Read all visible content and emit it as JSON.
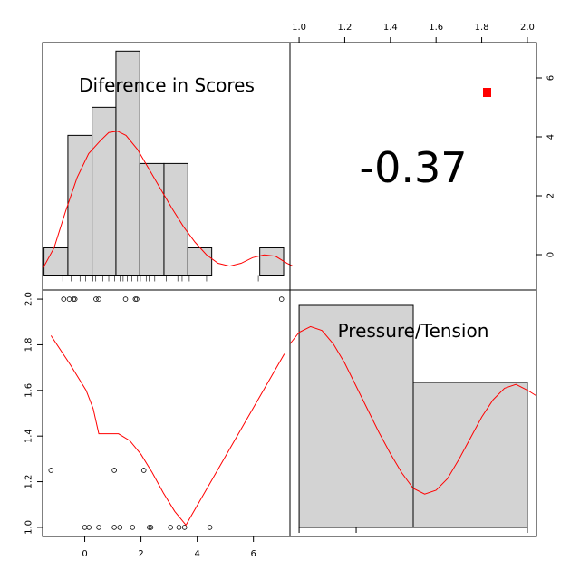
{
  "chart_data": {
    "type": "scatterplot-matrix",
    "variables": [
      "Diference in Scores",
      "Pressure/Tension"
    ],
    "correlation": {
      "label": "-0.37",
      "significance_marker_color": "#ff0000"
    },
    "diag_diff": {
      "title": "Diference in Scores",
      "type": "histogram",
      "bins": [
        {
          "x0": -1.25,
          "x1": -0.42,
          "count": 1
        },
        {
          "x0": -0.42,
          "x1": 0.42,
          "count": 5
        },
        {
          "x0": 0.42,
          "x1": 1.25,
          "count": 6
        },
        {
          "x0": 1.25,
          "x1": 2.08,
          "count": 8
        },
        {
          "x0": 2.08,
          "x1": 2.92,
          "count": 4
        },
        {
          "x0": 2.92,
          "x1": 3.75,
          "count": 4
        },
        {
          "x0": 3.75,
          "x1": 4.58,
          "count": 1
        },
        {
          "x0": 4.58,
          "x1": 5.42,
          "count": 0
        },
        {
          "x0": 5.42,
          "x1": 6.25,
          "count": 0
        },
        {
          "x0": 6.25,
          "x1": 7.08,
          "count": 1
        }
      ],
      "density_curve": [
        [
          -1.3,
          0.25
        ],
        [
          -0.9,
          1.0
        ],
        [
          -0.5,
          2.3
        ],
        [
          -0.1,
          3.5
        ],
        [
          0.3,
          4.35
        ],
        [
          0.7,
          4.8
        ],
        [
          1.0,
          5.1
        ],
        [
          1.3,
          5.15
        ],
        [
          1.6,
          5.0
        ],
        [
          2.0,
          4.5
        ],
        [
          2.4,
          3.8
        ],
        [
          2.8,
          3.1
        ],
        [
          3.2,
          2.4
        ],
        [
          3.6,
          1.75
        ],
        [
          4.0,
          1.2
        ],
        [
          4.4,
          0.75
        ],
        [
          4.8,
          0.45
        ],
        [
          5.2,
          0.35
        ],
        [
          5.6,
          0.45
        ],
        [
          6.0,
          0.65
        ],
        [
          6.4,
          0.75
        ],
        [
          6.8,
          0.7
        ],
        [
          7.2,
          0.45
        ],
        [
          7.4,
          0.35
        ]
      ],
      "rug": [
        -0.6,
        -0.3,
        0.0,
        0.2,
        0.45,
        0.55,
        0.8,
        1.0,
        1.2,
        1.4,
        1.5,
        1.65,
        1.8,
        2.0,
        2.1,
        2.3,
        2.4,
        2.6,
        3.0,
        3.4,
        3.55,
        3.8,
        4.4,
        6.2
      ],
      "xlim": [
        -1.3,
        7.3
      ],
      "ylim": [
        -0.5,
        8.3
      ]
    },
    "diag_pressure": {
      "title": "Pressure/Tension",
      "type": "histogram",
      "bins": [
        {
          "x0": 1.0,
          "x1": 1.5,
          "count": 12
        },
        {
          "x0": 1.5,
          "x1": 2.0,
          "count": 8
        }
      ],
      "density_curve": [
        [
          0.96,
          10.0
        ],
        [
          1.0,
          10.6
        ],
        [
          1.05,
          10.9
        ],
        [
          1.1,
          10.7
        ],
        [
          1.15,
          10.0
        ],
        [
          1.2,
          9.0
        ],
        [
          1.25,
          7.8
        ],
        [
          1.3,
          6.6
        ],
        [
          1.35,
          5.4
        ],
        [
          1.4,
          4.3
        ],
        [
          1.45,
          3.3
        ],
        [
          1.5,
          2.5
        ],
        [
          1.55,
          2.2
        ],
        [
          1.6,
          2.4
        ],
        [
          1.65,
          3.0
        ],
        [
          1.7,
          4.0
        ],
        [
          1.75,
          5.1
        ],
        [
          1.8,
          6.2
        ],
        [
          1.85,
          7.1
        ],
        [
          1.9,
          7.7
        ],
        [
          1.95,
          7.9
        ],
        [
          2.0,
          7.6
        ],
        [
          2.04,
          7.3
        ]
      ],
      "rug": [
        1.0,
        1.25,
        2.0
      ],
      "xlim": [
        0.96,
        2.04
      ],
      "ylim": [
        0,
        12.8
      ]
    },
    "scatter": {
      "x_variable": "Diference in Scores",
      "y_variable": "Pressure/Tension",
      "points": [
        [
          -0.75,
          2.0
        ],
        [
          -0.55,
          2.0
        ],
        [
          -0.4,
          2.0
        ],
        [
          -0.35,
          2.0
        ],
        [
          0.4,
          2.0
        ],
        [
          0.5,
          2.0
        ],
        [
          1.45,
          2.0
        ],
        [
          1.8,
          2.0
        ],
        [
          1.85,
          2.0
        ],
        [
          7.0,
          2.0
        ],
        [
          -1.2,
          1.25
        ],
        [
          1.05,
          1.25
        ],
        [
          2.1,
          1.25
        ],
        [
          0.0,
          1.0
        ],
        [
          0.15,
          1.0
        ],
        [
          0.5,
          1.0
        ],
        [
          1.05,
          1.0
        ],
        [
          1.25,
          1.0
        ],
        [
          1.7,
          1.0
        ],
        [
          2.3,
          1.0
        ],
        [
          2.35,
          1.0
        ],
        [
          3.05,
          1.0
        ],
        [
          3.35,
          1.0
        ],
        [
          3.55,
          1.0
        ],
        [
          4.45,
          1.0
        ]
      ],
      "smooth_line": [
        [
          -1.2,
          1.84
        ],
        [
          -0.5,
          1.71
        ],
        [
          0.05,
          1.6
        ],
        [
          0.3,
          1.52
        ],
        [
          0.5,
          1.41
        ],
        [
          1.0,
          1.41
        ],
        [
          1.2,
          1.41
        ],
        [
          1.6,
          1.38
        ],
        [
          2.0,
          1.32
        ],
        [
          2.4,
          1.24
        ],
        [
          2.8,
          1.15
        ],
        [
          3.2,
          1.07
        ],
        [
          3.6,
          1.01
        ],
        [
          7.1,
          1.76
        ]
      ],
      "xlim": [
        -1.5,
        7.3
      ],
      "ylim": [
        0.96,
        2.04
      ]
    },
    "axes": {
      "x_bottom_ticks": [
        "0",
        "2",
        "4",
        "6"
      ],
      "y_left_ticks": [
        "1.0",
        "1.2",
        "1.4",
        "1.6",
        "1.8",
        "2.0"
      ],
      "x_top_ticks": [
        "1.0",
        "1.2",
        "1.4",
        "1.6",
        "1.8",
        "2.0"
      ],
      "y_right_ticks": [
        "0",
        "2",
        "4",
        "6"
      ],
      "y_right_lim": [
        -1.2,
        7.2
      ]
    },
    "colors": {
      "bar_fill": "#d3d3d3",
      "density_line": "#ff0000",
      "smooth_line": "#ff0000",
      "axis": "#000000"
    }
  }
}
